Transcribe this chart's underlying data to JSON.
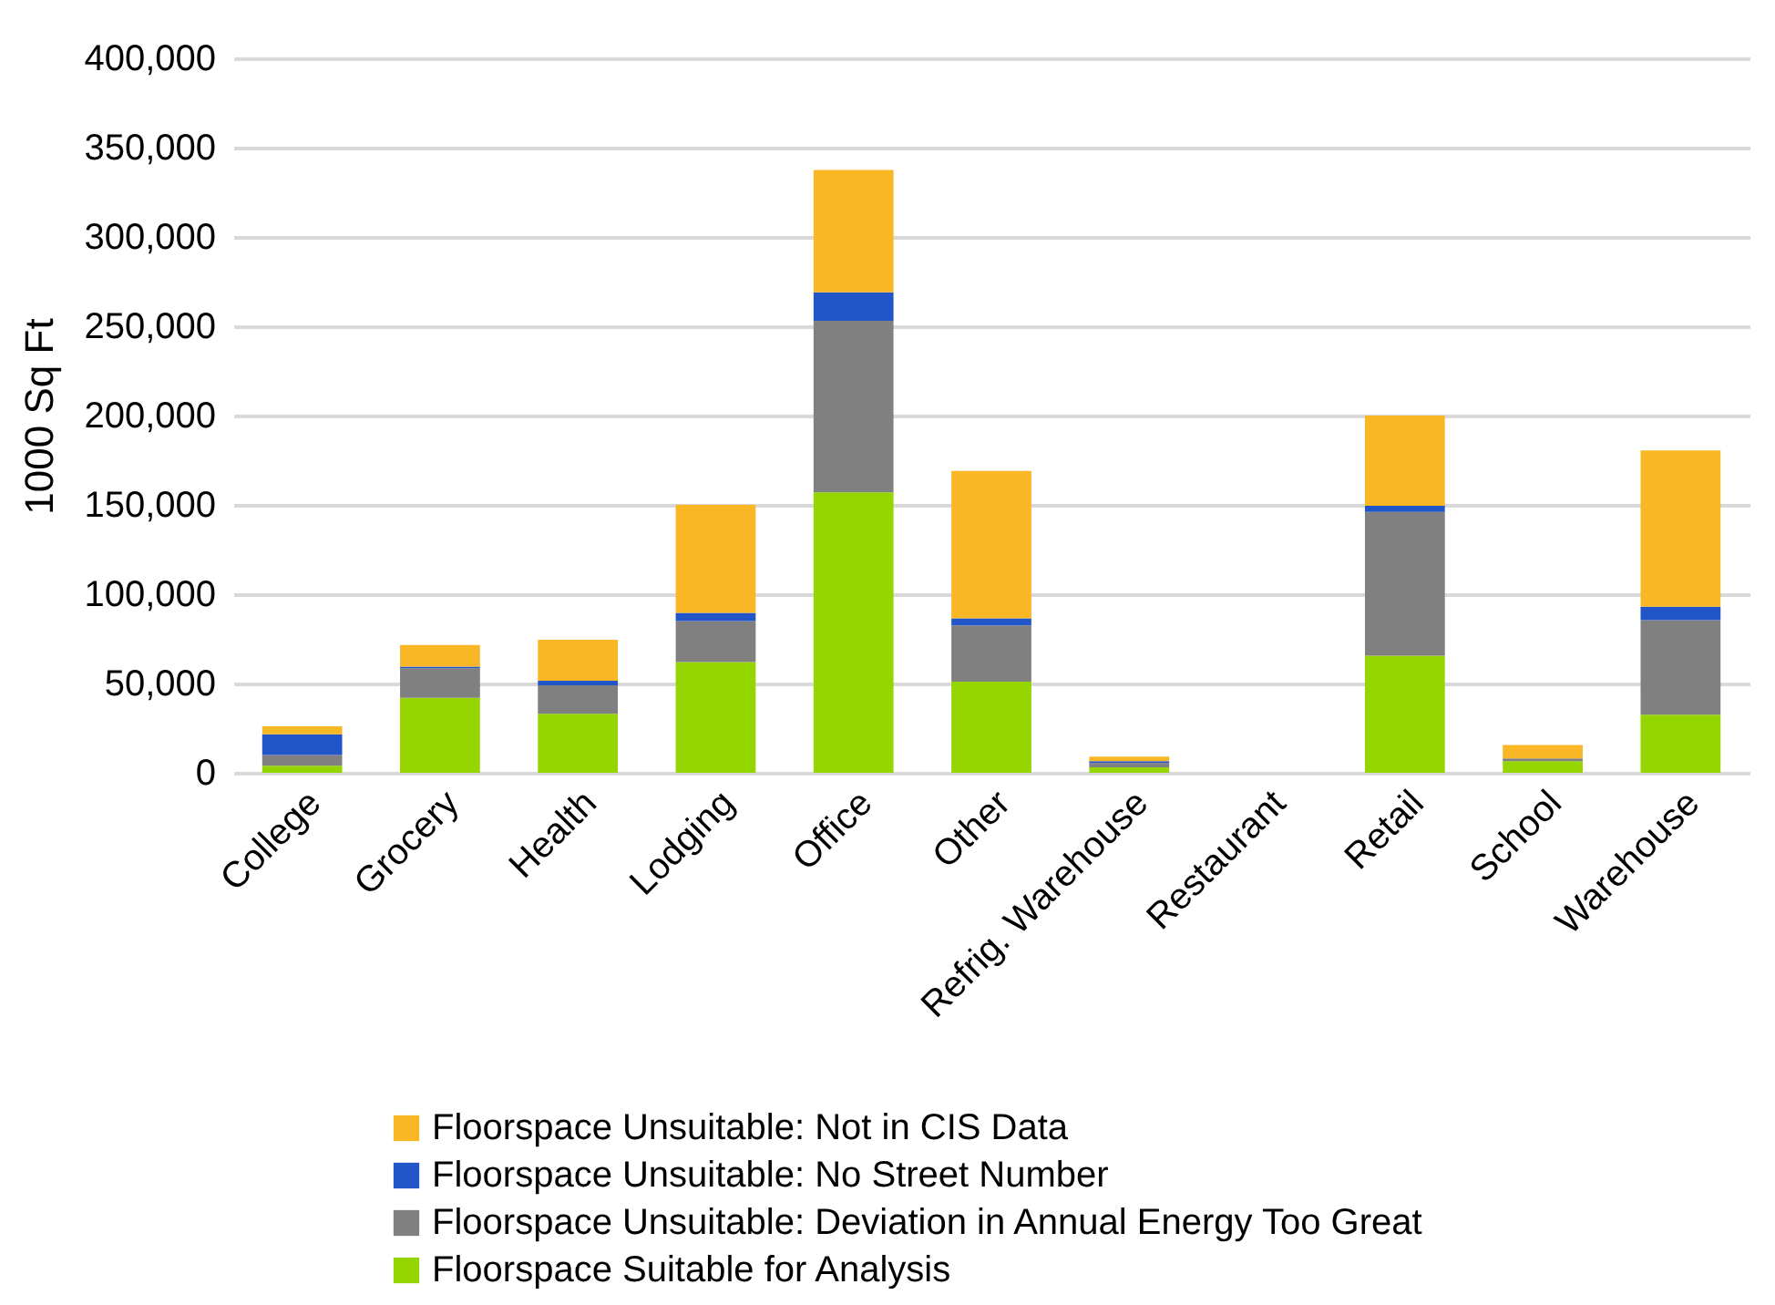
{
  "chart_data": {
    "type": "bar",
    "stacked": true,
    "ylabel": "1000 Sq Ft",
    "categories": [
      "College",
      "Grocery",
      "Health",
      "Lodging",
      "Office",
      "Other",
      "Refrig. Warehouse",
      "Restaurant",
      "Retail",
      "School",
      "Warehouse"
    ],
    "ylim": [
      0,
      400000
    ],
    "yticks": [
      {
        "value": 0,
        "label": "0"
      },
      {
        "value": 50000,
        "label": "50,000"
      },
      {
        "value": 100000,
        "label": "100,000"
      },
      {
        "value": 150000,
        "label": "150,000"
      },
      {
        "value": 200000,
        "label": "200,000"
      },
      {
        "value": 250000,
        "label": "250,000"
      },
      {
        "value": 300000,
        "label": "300,000"
      },
      {
        "value": 350000,
        "label": "350,000"
      },
      {
        "value": 400000,
        "label": "400,000"
      }
    ],
    "grid": "y",
    "legend": "bottom",
    "series": [
      {
        "name": "Floorspace Suitable for Analysis",
        "color": "#95d600",
        "values": [
          4000,
          42000,
          33000,
          62000,
          157000,
          51000,
          3000,
          0,
          65500,
          6500,
          32500
        ]
      },
      {
        "name": "Floorspace Unsuitable: Deviation in Annual Energy Too Great",
        "color": "#808080",
        "values": [
          6000,
          16500,
          16000,
          23000,
          96000,
          31500,
          2500,
          0,
          80500,
          1500,
          53000
        ]
      },
      {
        "name": "Floorspace Unsuitable: No Street Number",
        "color": "#2255c8",
        "values": [
          11500,
          1000,
          2500,
          4500,
          16000,
          4000,
          1000,
          0,
          3500,
          0,
          7500
        ]
      },
      {
        "name": "Floorspace Unsuitable: Not in CIS Data",
        "color": "#f9b625",
        "values": [
          4500,
          12000,
          23000,
          60500,
          68500,
          82500,
          2500,
          0,
          50500,
          7500,
          87500
        ]
      }
    ]
  }
}
